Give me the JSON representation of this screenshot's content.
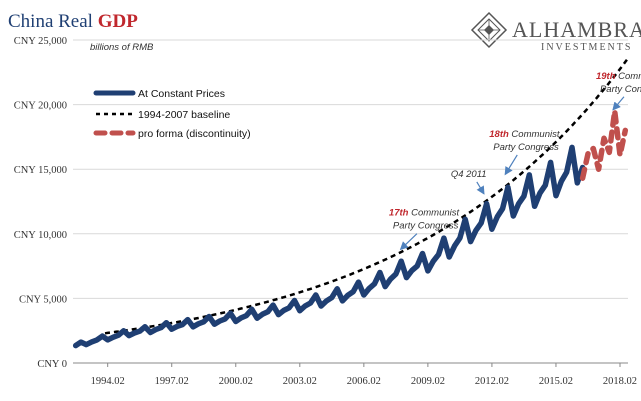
{
  "chart_data": {
    "type": "line",
    "title": "China Real GDP",
    "title_parts": [
      "China Real",
      "GDP"
    ],
    "subtitle": "billions of RMB",
    "brand": {
      "name": "ALHAMBRA",
      "sub": "INVESTMENTS"
    },
    "ylim": [
      0,
      25000
    ],
    "yticks": [
      {
        "value": 0,
        "label": "CNY 0"
      },
      {
        "value": 5000,
        "label": "CNY 5,000"
      },
      {
        "value": 10000,
        "label": "CNY 10,000"
      },
      {
        "value": 15000,
        "label": "CNY 15,000"
      },
      {
        "value": 20000,
        "label": "CNY 20,000"
      },
      {
        "value": 25000,
        "label": "CNY 25,000"
      }
    ],
    "xlim": [
      1992.5,
      2018.5
    ],
    "xticks": [
      {
        "value": 1994.125,
        "label": "1994.02"
      },
      {
        "value": 1997.125,
        "label": "1997.02"
      },
      {
        "value": 2000.125,
        "label": "2000.02"
      },
      {
        "value": 2003.125,
        "label": "2003.02"
      },
      {
        "value": 2006.125,
        "label": "2006.02"
      },
      {
        "value": 2009.125,
        "label": "2009.02"
      },
      {
        "value": 2012.125,
        "label": "2012.02"
      },
      {
        "value": 2015.125,
        "label": "2015.02"
      },
      {
        "value": 2018.125,
        "label": "2018.02"
      }
    ],
    "legend": [
      {
        "label": "At Constant Prices",
        "color": "#1f3f73",
        "style": "solid"
      },
      {
        "label": "1994-2007 baseline",
        "color": "#000000",
        "style": "dashed"
      },
      {
        "label": "pro forma (discontinuity)",
        "color": "#c0504d",
        "style": "dashed"
      }
    ],
    "series": [
      {
        "name": "At Constant Prices",
        "color": "#1f3f73",
        "quarterly_base": [
          [
            1992.625,
            1350
          ],
          [
            1993.5,
            1750
          ],
          [
            1995.0,
            2300
          ],
          [
            1997.0,
            2850
          ],
          [
            2000.0,
            3500
          ],
          [
            2003.0,
            4400
          ],
          [
            2006.0,
            5700
          ],
          [
            2008.0,
            7200
          ],
          [
            2009.0,
            7700
          ],
          [
            2011.0,
            10200
          ],
          [
            2013.0,
            12400
          ],
          [
            2015.0,
            14100
          ],
          [
            2016.375,
            15600
          ]
        ],
        "seasonal_factor": [
          0.91,
          0.97,
          1.0,
          1.11
        ]
      },
      {
        "name": "pro forma (discontinuity)",
        "color": "#c0504d",
        "x": [
          2016.375,
          2016.625,
          2016.875,
          2017.125,
          2017.375,
          2017.625,
          2017.875,
          2018.125,
          2018.375
        ],
        "values": [
          14300,
          16200,
          16600,
          15000,
          17400,
          16300,
          19500,
          16100,
          18000
        ]
      },
      {
        "name": "1994-2007 baseline",
        "color": "#000000",
        "x_start": 1994.0,
        "x_end": 2018.5,
        "start_value": 2300,
        "growth_rate": 0.095
      }
    ],
    "annotations": [
      {
        "red": "17th",
        "line1": " Communist",
        "line2": "Party Congress",
        "x": 2007.3,
        "y": 11400,
        "arrow_to": [
          2007.85,
          8800
        ]
      },
      {
        "red": "",
        "line1": "Q4 2011",
        "line2": "",
        "x": 2010.2,
        "y": 14400,
        "arrow_to": [
          2011.75,
          13100
        ]
      },
      {
        "red": "18th",
        "line1": " Communist",
        "line2": "Party Congress",
        "x": 2012.0,
        "y": 17500,
        "arrow_to": [
          2012.75,
          14600
        ]
      },
      {
        "red": "19th",
        "line1": " Communist",
        "line2": "Party Congress",
        "x": 2017.0,
        "y": 22000,
        "arrow_to": [
          2017.8,
          19600
        ]
      }
    ]
  }
}
